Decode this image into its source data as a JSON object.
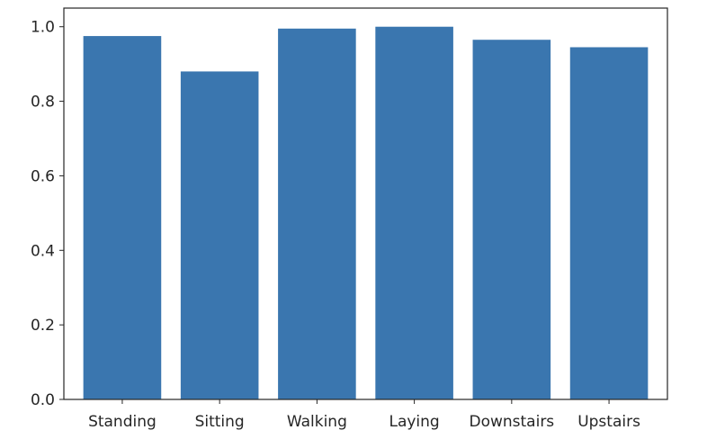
{
  "chart_data": {
    "type": "bar",
    "title": "",
    "xlabel": "",
    "ylabel": "",
    "categories": [
      "Standing",
      "Sitting",
      "Walking",
      "Laying",
      "Downstairs",
      "Upstairs"
    ],
    "values": [
      0.975,
      0.88,
      0.995,
      1.0,
      0.965,
      0.945
    ],
    "ylim": [
      0,
      1.05
    ],
    "yticks": [
      0.0,
      0.2,
      0.4,
      0.6,
      0.8,
      1.0
    ],
    "ytick_labels": [
      "0.0",
      "0.2",
      "0.4",
      "0.6",
      "0.8",
      "1.0"
    ],
    "bar_color": "#3a76af",
    "grid": false,
    "legend": "none"
  }
}
